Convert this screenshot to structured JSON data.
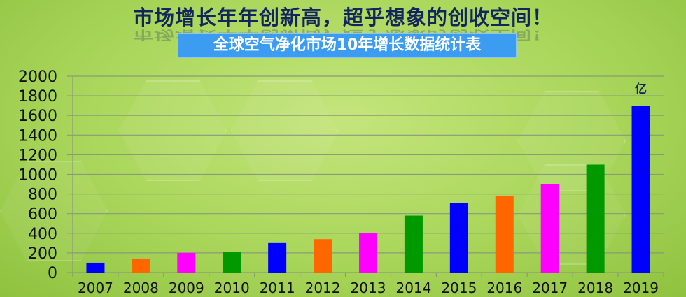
{
  "header": {
    "headline": "市场增长年年创新高，超乎想象的创收空间！",
    "subtitle": "全球空气净化市场10年增长数据统计表"
  },
  "chart_data": {
    "type": "bar",
    "title": "全球空气净化市场10年增长数据统计表",
    "unit_label": "亿",
    "categories": [
      "2007",
      "2008",
      "2009",
      "2010",
      "2011",
      "2012",
      "2013",
      "2014",
      "2015",
      "2016",
      "2017",
      "2018",
      "2019"
    ],
    "values": [
      100,
      140,
      200,
      210,
      300,
      340,
      400,
      580,
      710,
      780,
      900,
      1100,
      1700
    ],
    "colors": [
      "#0000ff",
      "#ff6600",
      "#ff00ff",
      "#009900",
      "#0000ff",
      "#ff6600",
      "#ff00ff",
      "#009900",
      "#0000ff",
      "#ff6600",
      "#ff00ff",
      "#009900",
      "#0000ff"
    ],
    "ylim": [
      0,
      2000
    ],
    "yticks": [
      0,
      200,
      400,
      600,
      800,
      1000,
      1200,
      1400,
      1600,
      1800,
      2000
    ],
    "grid": true,
    "legend": "none",
    "xlabel": "",
    "ylabel": ""
  }
}
